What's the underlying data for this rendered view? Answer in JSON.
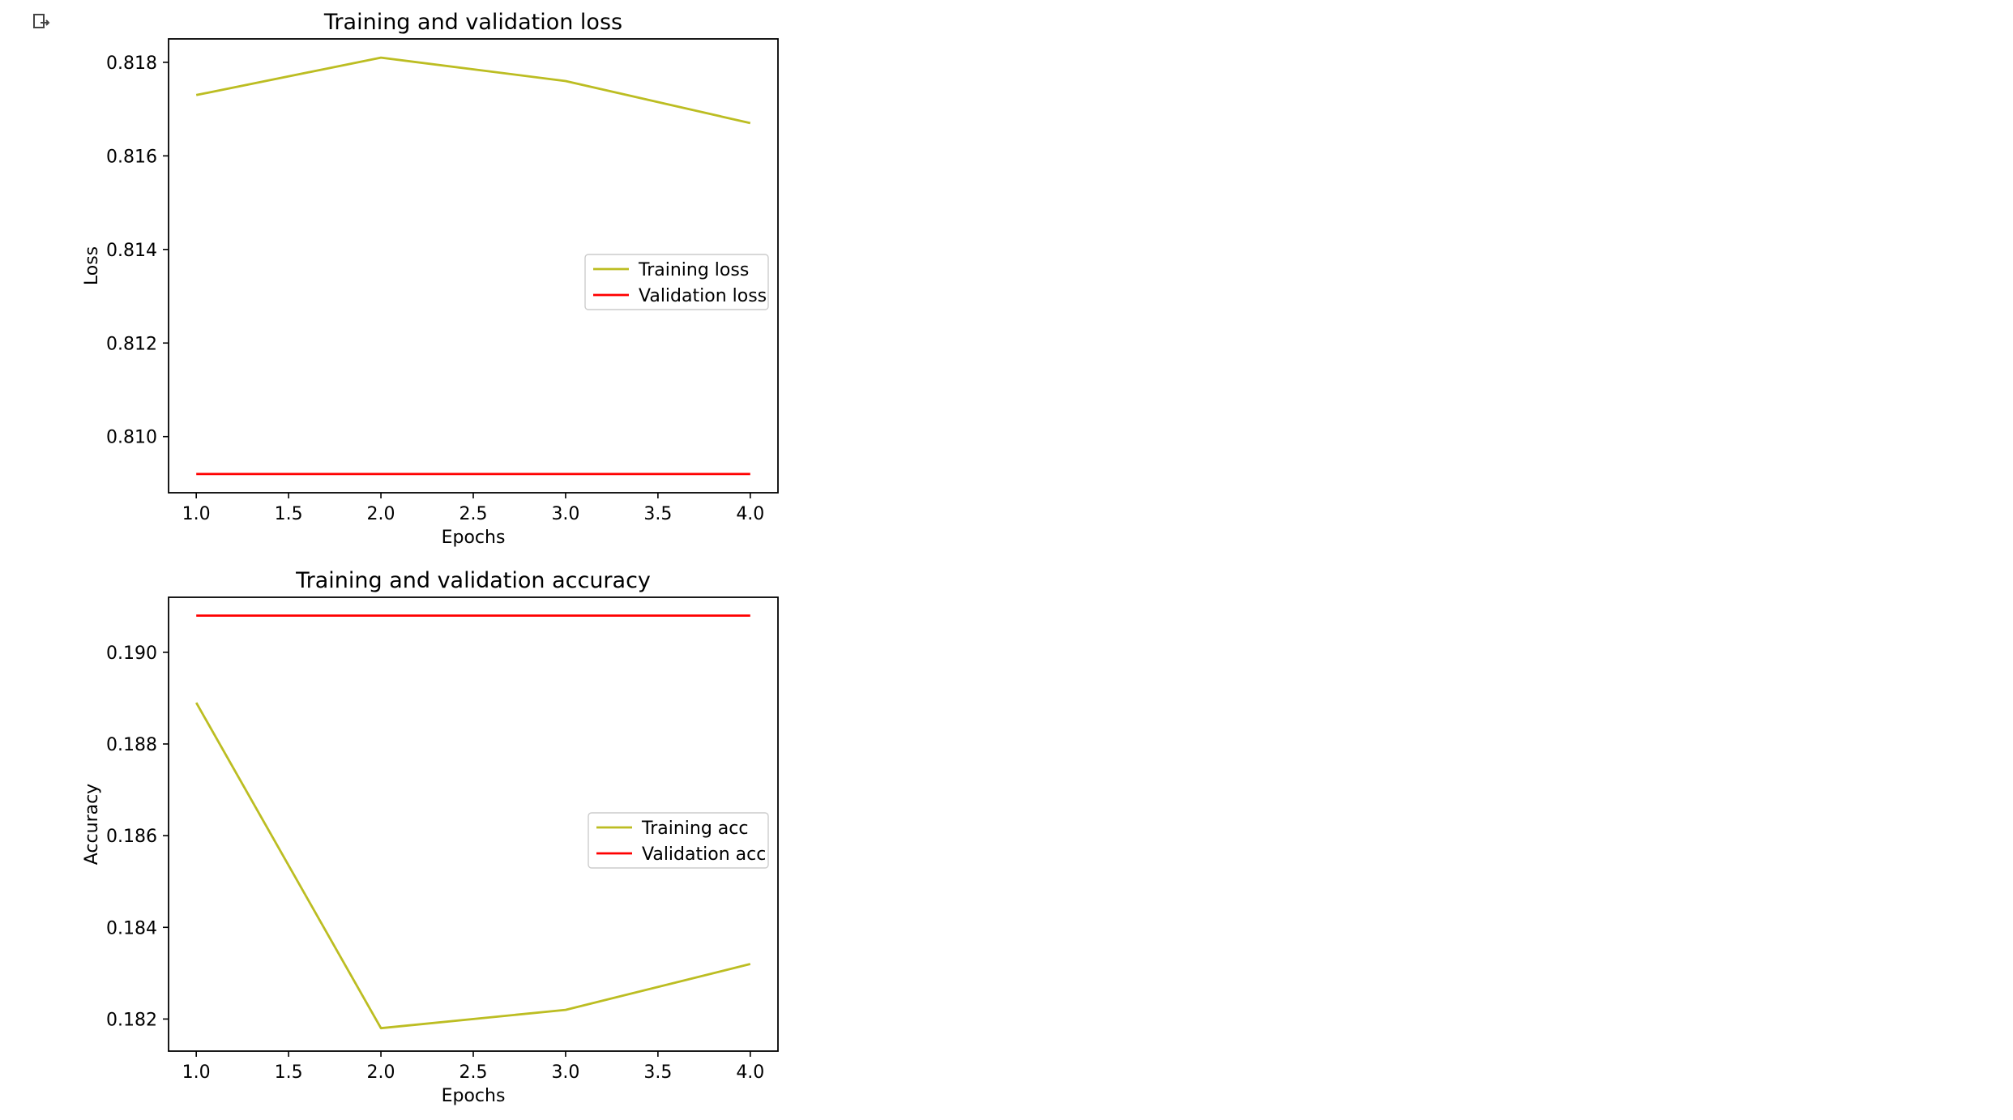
{
  "output_icon": "output-redirect-icon",
  "colors": {
    "training": "#bcbd22",
    "validation": "#ff0000",
    "axes": "#000000"
  },
  "chart_data": [
    {
      "type": "line",
      "title": "Training and validation loss",
      "xlabel": "Epochs",
      "ylabel": "Loss",
      "xlim": [
        0.85,
        4.15
      ],
      "ylim": [
        0.8088,
        0.8185
      ],
      "xticks": [
        1.0,
        1.5,
        2.0,
        2.5,
        3.0,
        3.5,
        4.0
      ],
      "xtick_labels": [
        "1.0",
        "1.5",
        "2.0",
        "2.5",
        "3.0",
        "3.5",
        "4.0"
      ],
      "yticks": [
        0.81,
        0.812,
        0.814,
        0.816,
        0.818
      ],
      "ytick_labels": [
        "0.810",
        "0.812",
        "0.814",
        "0.816",
        "0.818"
      ],
      "grid": false,
      "legend_position": "center-right",
      "x": [
        1,
        2,
        3,
        4
      ],
      "series": [
        {
          "name": "Training loss",
          "color": "#bcbd22",
          "values": [
            0.8173,
            0.8181,
            0.8176,
            0.8167
          ]
        },
        {
          "name": "Validation loss",
          "color": "#ff0000",
          "values": [
            0.8092,
            0.8092,
            0.8092,
            0.8092
          ]
        }
      ]
    },
    {
      "type": "line",
      "title": "Training and validation accuracy",
      "xlabel": "Epochs",
      "ylabel": "Accuracy",
      "xlim": [
        0.85,
        4.15
      ],
      "ylim": [
        0.1813,
        0.1912
      ],
      "xticks": [
        1.0,
        1.5,
        2.0,
        2.5,
        3.0,
        3.5,
        4.0
      ],
      "xtick_labels": [
        "1.0",
        "1.5",
        "2.0",
        "2.5",
        "3.0",
        "3.5",
        "4.0"
      ],
      "yticks": [
        0.182,
        0.184,
        0.186,
        0.188,
        0.19
      ],
      "ytick_labels": [
        "0.182",
        "0.184",
        "0.186",
        "0.188",
        "0.190"
      ],
      "grid": false,
      "legend_position": "center-right",
      "x": [
        1,
        2,
        3,
        4
      ],
      "series": [
        {
          "name": "Training acc",
          "color": "#bcbd22",
          "values": [
            0.1889,
            0.1818,
            0.1822,
            0.1832
          ]
        },
        {
          "name": "Validation acc",
          "color": "#ff0000",
          "values": [
            0.1908,
            0.1908,
            0.1908,
            0.1908
          ]
        }
      ]
    }
  ]
}
